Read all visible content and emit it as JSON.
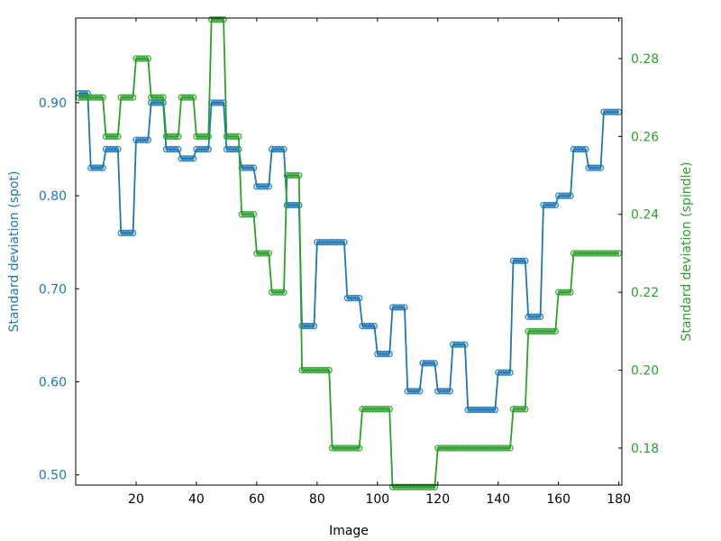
{
  "chart_data": {
    "type": "line",
    "xlabel": "Image",
    "ylabel_left": "Standard deviation (spot)",
    "ylabel_right": "Standard deviation (spindle)",
    "xlim": [
      0,
      181
    ],
    "ylim_left": [
      0.489,
      0.991
    ],
    "ylim_right": [
      0.1705,
      0.2904
    ],
    "x_ticks": [
      20,
      40,
      60,
      80,
      100,
      120,
      140,
      160,
      180
    ],
    "x_tick_labels": [
      "20",
      "40",
      "60",
      "80",
      "100",
      "120",
      "140",
      "160",
      "180"
    ],
    "y_left_ticks": [
      0.5,
      0.6,
      0.7,
      0.8,
      0.9
    ],
    "y_left_tick_labels": [
      "0.50",
      "0.60",
      "0.70",
      "0.80",
      "0.90"
    ],
    "y_right_ticks": [
      0.18,
      0.2,
      0.22,
      0.24,
      0.26,
      0.28
    ],
    "y_right_tick_labels": [
      "0.18",
      "0.20",
      "0.22",
      "0.24",
      "0.26",
      "0.28"
    ],
    "grid": false,
    "colors": {
      "spot": "#1f77b4",
      "spindle": "#2ca02c"
    },
    "series": [
      {
        "axis": "left",
        "color": "#1f77b4",
        "segments": [
          [
            1,
            4,
            0.91
          ],
          [
            5,
            9,
            0.83
          ],
          [
            10,
            14,
            0.85
          ],
          [
            15,
            19,
            0.76
          ],
          [
            20,
            24,
            0.86
          ],
          [
            25,
            29,
            0.9
          ],
          [
            30,
            34,
            0.85
          ],
          [
            35,
            39,
            0.84
          ],
          [
            40,
            44,
            0.85
          ],
          [
            45,
            49,
            0.9
          ],
          [
            50,
            54,
            0.85
          ],
          [
            55,
            59,
            0.83
          ],
          [
            60,
            64,
            0.81
          ],
          [
            65,
            69,
            0.85
          ],
          [
            70,
            74,
            0.79
          ],
          [
            75,
            79,
            0.66
          ],
          [
            80,
            89,
            0.75
          ],
          [
            90,
            94,
            0.69
          ],
          [
            95,
            99,
            0.66
          ],
          [
            100,
            104,
            0.63
          ],
          [
            105,
            109,
            0.68
          ],
          [
            110,
            114,
            0.59
          ],
          [
            115,
            119,
            0.62
          ],
          [
            120,
            124,
            0.59
          ],
          [
            125,
            129,
            0.64
          ],
          [
            130,
            139,
            0.57
          ],
          [
            140,
            144,
            0.61
          ],
          [
            145,
            149,
            0.73
          ],
          [
            150,
            154,
            0.67
          ],
          [
            155,
            159,
            0.79
          ],
          [
            160,
            164,
            0.8
          ],
          [
            165,
            169,
            0.85
          ],
          [
            170,
            174,
            0.83
          ],
          [
            175,
            180,
            0.89
          ]
        ]
      },
      {
        "axis": "right",
        "color": "#2ca02c",
        "segments": [
          [
            1,
            9,
            0.27
          ],
          [
            10,
            14,
            0.26
          ],
          [
            15,
            19,
            0.27
          ],
          [
            20,
            24,
            0.28
          ],
          [
            25,
            29,
            0.27
          ],
          [
            30,
            34,
            0.26
          ],
          [
            35,
            39,
            0.27
          ],
          [
            40,
            44,
            0.26
          ],
          [
            45,
            49,
            0.29
          ],
          [
            50,
            54,
            0.26
          ],
          [
            55,
            59,
            0.24
          ],
          [
            60,
            64,
            0.23
          ],
          [
            65,
            69,
            0.22
          ],
          [
            70,
            74,
            0.25
          ],
          [
            75,
            84,
            0.2
          ],
          [
            85,
            94,
            0.18
          ],
          [
            95,
            104,
            0.19
          ],
          [
            105,
            119,
            0.17
          ],
          [
            120,
            144,
            0.18
          ],
          [
            145,
            149,
            0.19
          ],
          [
            150,
            159,
            0.21
          ],
          [
            160,
            164,
            0.22
          ],
          [
            165,
            180,
            0.23
          ]
        ]
      }
    ]
  }
}
